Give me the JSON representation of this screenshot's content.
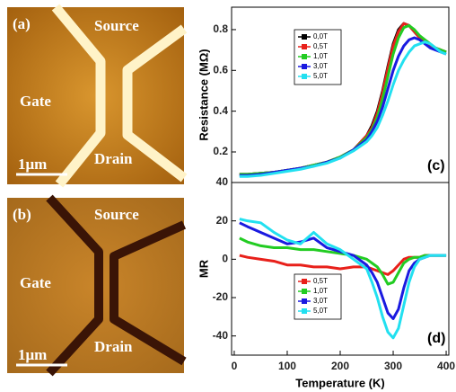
{
  "images": [
    {
      "label": "(a)",
      "texts": [
        "Source",
        "Gate",
        "Drain",
        "1μm"
      ]
    },
    {
      "label": "(b)",
      "texts": [
        "Source",
        "Gate",
        "Drain",
        "1μm"
      ]
    }
  ],
  "chart_data": [
    {
      "type": "line",
      "ylabel": "Resistance (MΩ)",
      "annotation": "(c)",
      "legend": "upper left",
      "x": [
        10,
        25,
        50,
        75,
        100,
        125,
        150,
        175,
        200,
        225,
        250,
        260,
        270,
        280,
        290,
        300,
        310,
        320,
        330,
        340,
        350,
        360,
        370,
        380,
        390,
        400
      ],
      "xlim": [
        -5,
        405
      ],
      "ylim": [
        0.05,
        0.91
      ],
      "yticks": [
        0.2,
        0.4,
        0.6,
        0.8
      ],
      "series": [
        {
          "name": "0,0T",
          "color": "#000000",
          "values": [
            0.09,
            0.09,
            0.095,
            0.1,
            0.11,
            0.12,
            0.135,
            0.15,
            0.175,
            0.21,
            0.28,
            0.33,
            0.4,
            0.5,
            0.62,
            0.73,
            0.8,
            0.83,
            0.82,
            0.79,
            0.76,
            0.74,
            0.72,
            0.71,
            0.7,
            0.69
          ]
        },
        {
          "name": "0,5T",
          "color": "#e8201a",
          "values": [
            0.09,
            0.09,
            0.095,
            0.1,
            0.11,
            0.12,
            0.135,
            0.15,
            0.175,
            0.21,
            0.28,
            0.32,
            0.39,
            0.49,
            0.61,
            0.72,
            0.79,
            0.83,
            0.82,
            0.79,
            0.76,
            0.74,
            0.72,
            0.71,
            0.7,
            0.69
          ]
        },
        {
          "name": "1,0T",
          "color": "#22cc22",
          "values": [
            0.09,
            0.09,
            0.095,
            0.1,
            0.11,
            0.12,
            0.135,
            0.15,
            0.175,
            0.21,
            0.27,
            0.31,
            0.37,
            0.46,
            0.57,
            0.68,
            0.76,
            0.81,
            0.82,
            0.8,
            0.77,
            0.75,
            0.73,
            0.71,
            0.7,
            0.69
          ]
        },
        {
          "name": "3,0T",
          "color": "#1a1ae0",
          "values": [
            0.085,
            0.085,
            0.09,
            0.1,
            0.11,
            0.12,
            0.13,
            0.15,
            0.17,
            0.21,
            0.26,
            0.3,
            0.35,
            0.42,
            0.51,
            0.6,
            0.67,
            0.72,
            0.75,
            0.76,
            0.75,
            0.73,
            0.71,
            0.7,
            0.69,
            0.68
          ]
        },
        {
          "name": "5,0T",
          "color": "#22e0f0",
          "values": [
            0.08,
            0.08,
            0.085,
            0.095,
            0.105,
            0.115,
            0.13,
            0.145,
            0.17,
            0.205,
            0.25,
            0.28,
            0.32,
            0.38,
            0.45,
            0.53,
            0.6,
            0.65,
            0.69,
            0.72,
            0.73,
            0.74,
            0.73,
            0.71,
            0.69,
            0.68
          ]
        }
      ]
    },
    {
      "type": "line",
      "xlabel": "Temperature (K)",
      "ylabel": "MR",
      "annotation": "(d)",
      "legend": "lower left",
      "x": [
        10,
        25,
        50,
        75,
        100,
        125,
        150,
        175,
        200,
        225,
        250,
        260,
        270,
        280,
        290,
        300,
        310,
        320,
        330,
        340,
        350,
        360,
        370,
        380,
        390,
        400
      ],
      "xlim": [
        -5,
        405
      ],
      "xticks": [
        0,
        100,
        200,
        300,
        400
      ],
      "ylim": [
        -50,
        40
      ],
      "yticks": [
        -40,
        -20,
        0,
        20,
        40
      ],
      "series": [
        {
          "name": "0,5T",
          "color": "#e8201a",
          "values": [
            2,
            1,
            0,
            -1,
            -3,
            -3,
            -4,
            -4,
            -5,
            -4,
            -4,
            -5,
            -6,
            -7,
            -8,
            -6,
            -3,
            0,
            1,
            1,
            1,
            2,
            2,
            2,
            2,
            2
          ]
        },
        {
          "name": "1,0T",
          "color": "#22cc22",
          "values": [
            11,
            9,
            7,
            6,
            6,
            5,
            5,
            4,
            3,
            2,
            0,
            -2,
            -4,
            -8,
            -13,
            -12,
            -7,
            -2,
            0,
            1,
            1,
            2,
            2,
            2,
            2,
            2
          ]
        },
        {
          "name": "3,0T",
          "color": "#1a1ae0",
          "values": [
            19,
            17,
            14,
            11,
            8,
            9,
            11,
            6,
            4,
            2,
            -3,
            -7,
            -12,
            -20,
            -28,
            -31,
            -26,
            -15,
            -6,
            -2,
            0,
            1,
            2,
            2,
            2,
            2
          ]
        },
        {
          "name": "5,0T",
          "color": "#22e0f0",
          "values": [
            21,
            20,
            19,
            14,
            10,
            8,
            14,
            8,
            5,
            0,
            -5,
            -12,
            -20,
            -30,
            -38,
            -41,
            -36,
            -24,
            -12,
            -4,
            0,
            1,
            2,
            2,
            2,
            2
          ]
        }
      ]
    }
  ]
}
